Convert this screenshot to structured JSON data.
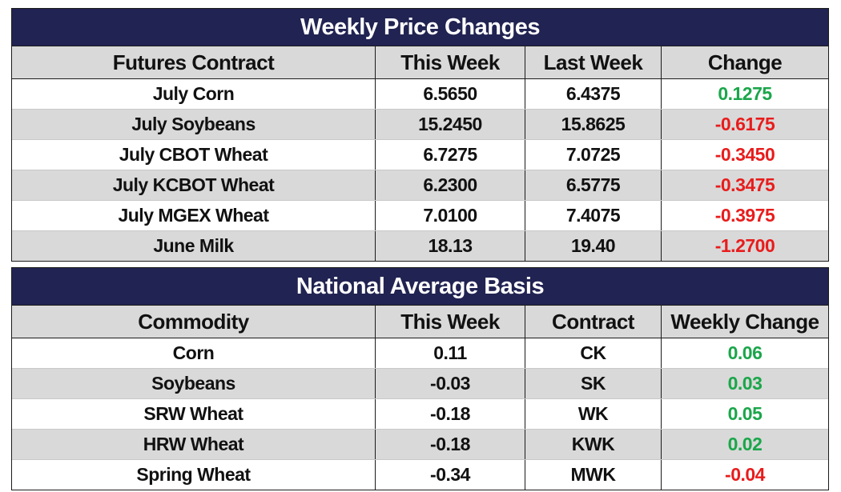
{
  "weekly_price_changes": {
    "title": "Weekly Price Changes",
    "headers": [
      "Futures Contract",
      "This Week",
      "Last Week",
      "Change"
    ],
    "rows": [
      {
        "contract": "July Corn",
        "this_week": "6.5650",
        "last_week": "6.4375",
        "change": "0.1275",
        "direction": "up"
      },
      {
        "contract": "July Soybeans",
        "this_week": "15.2450",
        "last_week": "15.8625",
        "change": "-0.6175",
        "direction": "down"
      },
      {
        "contract": "July CBOT Wheat",
        "this_week": "6.7275",
        "last_week": "7.0725",
        "change": "-0.3450",
        "direction": "down"
      },
      {
        "contract": "July KCBOT Wheat",
        "this_week": "6.2300",
        "last_week": "6.5775",
        "change": "-0.3475",
        "direction": "down"
      },
      {
        "contract": "July MGEX Wheat",
        "this_week": "7.0100",
        "last_week": "7.4075",
        "change": "-0.3975",
        "direction": "down"
      },
      {
        "contract": "June Milk",
        "this_week": "18.13",
        "last_week": "19.40",
        "change": "-1.2700",
        "direction": "down"
      }
    ]
  },
  "national_average_basis": {
    "title": "National Average Basis",
    "headers": [
      "Commodity",
      "This Week",
      "Contract",
      "Weekly Change"
    ],
    "rows": [
      {
        "commodity": "Corn",
        "this_week": "0.11",
        "contract": "CK",
        "weekly_change": "0.06",
        "direction": "up"
      },
      {
        "commodity": "Soybeans",
        "this_week": "-0.03",
        "contract": "SK",
        "weekly_change": "0.03",
        "direction": "up"
      },
      {
        "commodity": "SRW Wheat",
        "this_week": "-0.18",
        "contract": "WK",
        "weekly_change": "0.05",
        "direction": "up"
      },
      {
        "commodity": "HRW Wheat",
        "this_week": "-0.18",
        "contract": "KWK",
        "weekly_change": "0.02",
        "direction": "up"
      },
      {
        "commodity": "Spring Wheat",
        "this_week": "-0.34",
        "contract": "MWK",
        "weekly_change": "-0.04",
        "direction": "down"
      }
    ]
  },
  "colors": {
    "title_bar": "#212352",
    "header_row": "#d9d9d9",
    "alt_row": "#d9d9d9",
    "positive": "#1aa64a",
    "negative": "#e81c1c"
  }
}
